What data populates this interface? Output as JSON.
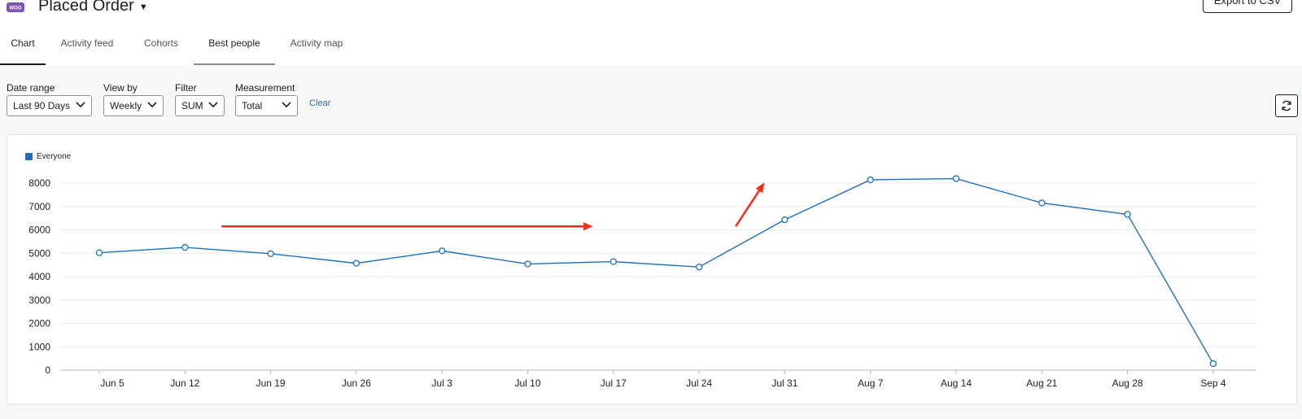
{
  "header": {
    "logo_text": "WOO",
    "title": "Placed Order",
    "export_label": "Export to CSV"
  },
  "tabs": [
    {
      "label": "Chart",
      "active": true
    },
    {
      "label": "Activity feed",
      "active": false
    },
    {
      "label": "Cohorts",
      "active": false
    },
    {
      "label": "Best people",
      "active": false
    },
    {
      "label": "Activity map",
      "active": false
    }
  ],
  "controls": {
    "date_range": {
      "label": "Date range",
      "value": "Last 90 Days"
    },
    "view_by": {
      "label": "View by",
      "value": "Weekly"
    },
    "filter": {
      "label": "Filter",
      "value": "SUM"
    },
    "measurement": {
      "label": "Measurement",
      "value": "Total"
    },
    "clear_label": "Clear",
    "refresh_icon": "refresh-icon"
  },
  "colors": {
    "series": "#1f6fb8",
    "annotation_arrow": "#ff2a1a",
    "link": "#2271b1"
  },
  "chart_data": {
    "type": "line",
    "categories": [
      "Jun 5",
      "Jun 12",
      "Jun 19",
      "Jun 26",
      "Jul 3",
      "Jul 10",
      "Jul 17",
      "Jul 24",
      "Jul 31",
      "Aug 7",
      "Aug 14",
      "Aug 21",
      "Aug 28",
      "Sep 4"
    ],
    "series": [
      {
        "name": "Everyone",
        "values": [
          5020,
          5250,
          4980,
          4570,
          5100,
          4540,
          4640,
          4410,
          6430,
          8140,
          8190,
          7150,
          6660,
          280
        ]
      }
    ],
    "ylim": [
      0,
      8000
    ],
    "yticks": [
      0,
      1000,
      2000,
      3000,
      4000,
      5000,
      6000,
      7000,
      8000
    ],
    "grid": true,
    "legend": "top-left"
  },
  "annotations": {
    "arrows": [
      {
        "from_category": "Jun 12",
        "to_category": "Jul 17",
        "value": 6150
      },
      {
        "from_category": "Jul 24",
        "to_category": "Jul 31",
        "value_from": 6150,
        "value_to": 8020
      }
    ]
  }
}
